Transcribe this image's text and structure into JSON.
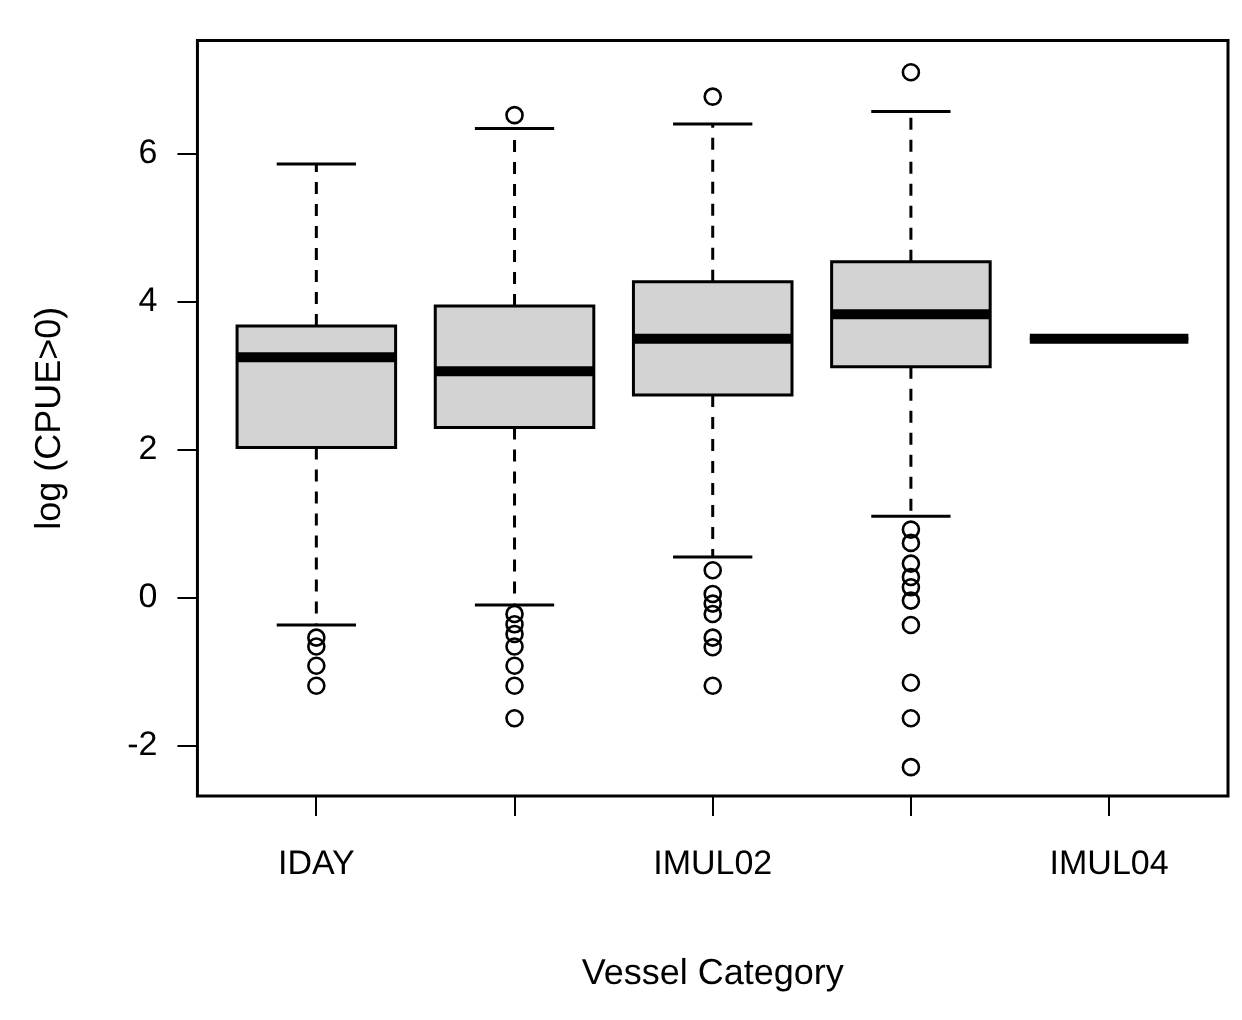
{
  "chart_data": {
    "type": "box",
    "xlabel": "Vessel Category",
    "ylabel": "log (CPUE>0)",
    "categories": [
      "IDAY",
      null,
      "IMUL02",
      null,
      "IMUL04"
    ],
    "colors": [
      "#d3d3d3",
      "#d3d3d3",
      "#d3d3d3",
      "#d3d3d3",
      "#000000"
    ],
    "grid": false,
    "ylim": [
      -2.68,
      7.53
    ],
    "yticks": [
      -2,
      0,
      2,
      4,
      6
    ],
    "boxes": [
      {
        "low": -0.37,
        "q1": 2.03,
        "median": 3.25,
        "q3": 3.67,
        "high": 5.86,
        "outliers": [
          -0.54,
          -0.66,
          -0.92,
          -1.19
        ]
      },
      {
        "low": -0.1,
        "q1": 2.3,
        "median": 3.06,
        "q3": 3.94,
        "high": 6.34,
        "outliers": [
          6.52,
          -0.22,
          -0.36,
          -0.49,
          -0.66,
          -0.92,
          -1.19,
          -1.63
        ]
      },
      {
        "low": 0.55,
        "q1": 2.74,
        "median": 3.5,
        "q3": 4.27,
        "high": 6.4,
        "outliers": [
          6.77,
          0.37,
          0.05,
          -0.08,
          -0.22,
          -0.54,
          -0.67,
          -1.19
        ]
      },
      {
        "low": 1.1,
        "q1": 3.12,
        "median": 3.83,
        "q3": 4.54,
        "high": 6.57,
        "outliers": [
          7.1,
          0.92,
          0.74,
          0.46,
          0.28,
          0.14,
          -0.04,
          -0.37,
          -1.15,
          -1.63,
          -2.29
        ]
      },
      {
        "low": 3.5,
        "q1": 3.5,
        "median": 3.5,
        "q3": 3.5,
        "high": 3.5
      }
    ]
  }
}
